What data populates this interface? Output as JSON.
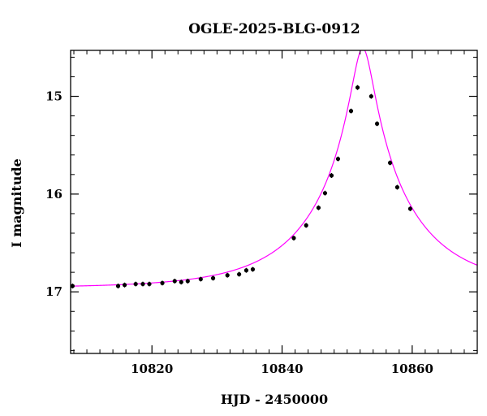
{
  "chart_data": {
    "type": "scatter",
    "title": "OGLE-2025-BLG-0912",
    "xlabel": "HJD - 2450000",
    "ylabel": "I magnitude",
    "xlim": [
      10807.5,
      10870
    ],
    "ylim": [
      17.63,
      14.53
    ],
    "y_inverted": true,
    "grid": false,
    "x_major_ticks": [
      10820,
      10840,
      10860
    ],
    "x_minor_step": 2,
    "y_major_ticks": [
      15,
      16,
      17
    ],
    "y_minor_step": 0.2,
    "x_tick_labels": [
      "10820",
      "10840",
      "10860"
    ],
    "y_tick_labels": [
      "15",
      "16",
      "17"
    ],
    "colors": {
      "model": "#ff00ff",
      "points": "#000000",
      "axes": "#000000"
    },
    "series": [
      {
        "type": "scatter",
        "points": [
          [
            10807.8,
            16.94
          ],
          [
            10814.8,
            16.94
          ],
          [
            10815.8,
            16.93
          ],
          [
            10817.5,
            16.92
          ],
          [
            10818.6,
            16.92
          ],
          [
            10819.6,
            16.92
          ],
          [
            10821.6,
            16.91
          ],
          [
            10823.5,
            16.89
          ],
          [
            10824.5,
            16.9
          ],
          [
            10825.5,
            16.89
          ],
          [
            10827.5,
            16.87
          ],
          [
            10829.4,
            16.86
          ],
          [
            10831.6,
            16.83
          ],
          [
            10833.4,
            16.82
          ],
          [
            10834.5,
            16.78
          ],
          [
            10835.5,
            16.77
          ],
          [
            10841.8,
            16.45
          ],
          [
            10843.7,
            16.32
          ],
          [
            10845.6,
            16.14
          ],
          [
            10846.6,
            15.99
          ],
          [
            10847.6,
            15.81
          ],
          [
            10848.6,
            15.64
          ],
          [
            10850.6,
            15.15
          ],
          [
            10851.6,
            14.91
          ],
          [
            10853.7,
            15.0
          ],
          [
            10854.6,
            15.28
          ],
          [
            10856.6,
            15.68
          ],
          [
            10857.7,
            15.93
          ],
          [
            10859.7,
            16.15
          ]
        ]
      },
      {
        "type": "line",
        "model": {
          "t0": 10852.4,
          "u0": 0.105,
          "tE": 15.0,
          "baseline": 16.96
        }
      }
    ]
  }
}
